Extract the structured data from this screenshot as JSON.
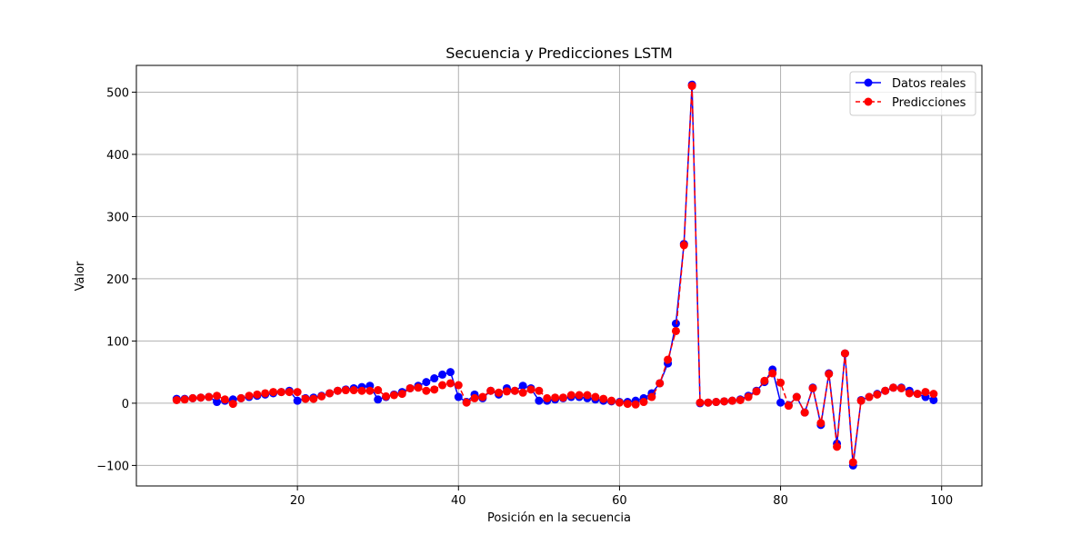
{
  "chart_data": {
    "type": "line",
    "title": "Secuencia y Predicciones LSTM",
    "xlabel": "Posición en la secuencia",
    "ylabel": "Valor",
    "xlim": [
      0,
      105
    ],
    "ylim": [
      -133,
      543
    ],
    "xticks": [
      20,
      40,
      60,
      80,
      100
    ],
    "yticks": [
      -100,
      0,
      100,
      200,
      300,
      400,
      500
    ],
    "grid": true,
    "legend": "top-right",
    "series": [
      {
        "name": "Datos reales",
        "color": "#0000ff",
        "style": "solid",
        "x": [
          5,
          6,
          7,
          8,
          9,
          10,
          11,
          12,
          13,
          14,
          15,
          16,
          17,
          18,
          19,
          20,
          21,
          22,
          23,
          24,
          25,
          26,
          27,
          28,
          29,
          30,
          31,
          32,
          33,
          34,
          35,
          36,
          37,
          38,
          39,
          40,
          41,
          42,
          43,
          44,
          45,
          46,
          47,
          48,
          49,
          50,
          51,
          52,
          53,
          54,
          55,
          56,
          57,
          58,
          59,
          60,
          61,
          62,
          63,
          64,
          65,
          66,
          67,
          68,
          69,
          70,
          71,
          72,
          73,
          74,
          75,
          76,
          77,
          78,
          79,
          80,
          81,
          82,
          83,
          84,
          85,
          86,
          87,
          88,
          89,
          90,
          91,
          92,
          93,
          94,
          95,
          96,
          97,
          98,
          99
        ],
        "values": [
          7,
          7,
          8,
          9,
          10,
          2,
          4,
          6,
          8,
          10,
          12,
          14,
          16,
          18,
          20,
          4,
          8,
          9,
          12,
          16,
          20,
          22,
          24,
          26,
          28,
          6,
          10,
          14,
          18,
          24,
          28,
          34,
          40,
          46,
          50,
          10,
          2,
          14,
          8,
          20,
          14,
          24,
          20,
          28,
          24,
          4,
          4,
          6,
          8,
          10,
          10,
          8,
          6,
          4,
          3,
          2,
          2,
          4,
          8,
          16,
          32,
          64,
          128,
          256,
          512,
          0,
          1,
          2,
          3,
          4,
          6,
          12,
          20,
          34,
          54,
          1,
          -3,
          10,
          -15,
          25,
          -35,
          48,
          -65,
          80,
          -100,
          5,
          10,
          15,
          20,
          25,
          25,
          20,
          15,
          10,
          5
        ]
      },
      {
        "name": "Predicciones",
        "color": "#ff0000",
        "style": "dashed",
        "x": [
          5,
          6,
          7,
          8,
          9,
          10,
          11,
          12,
          13,
          14,
          15,
          16,
          17,
          18,
          19,
          20,
          21,
          22,
          23,
          24,
          25,
          26,
          27,
          28,
          29,
          30,
          31,
          32,
          33,
          34,
          35,
          36,
          37,
          38,
          39,
          40,
          41,
          42,
          43,
          44,
          45,
          46,
          47,
          48,
          49,
          50,
          51,
          52,
          53,
          54,
          55,
          56,
          57,
          58,
          59,
          60,
          61,
          62,
          63,
          64,
          65,
          66,
          67,
          68,
          69,
          70,
          71,
          72,
          73,
          74,
          75,
          76,
          77,
          78,
          79,
          80,
          81,
          82,
          83,
          84,
          85,
          86,
          87,
          88,
          89,
          90,
          91,
          92,
          93,
          94,
          95,
          96,
          97,
          98,
          99
        ],
        "values": [
          5,
          6,
          8,
          9,
          10,
          12,
          6,
          -1,
          8,
          12,
          14,
          16,
          18,
          18,
          18,
          18,
          7,
          7,
          11,
          16,
          20,
          21,
          21,
          20,
          20,
          21,
          11,
          13,
          15,
          24,
          25,
          20,
          22,
          29,
          32,
          29,
          1,
          8,
          10,
          20,
          17,
          19,
          20,
          17,
          22,
          20,
          8,
          9,
          9,
          13,
          13,
          13,
          10,
          7,
          4,
          1,
          -1,
          -2,
          2,
          10,
          32,
          70,
          116,
          254,
          510,
          1,
          1,
          2,
          3,
          4,
          5,
          10,
          19,
          36,
          48,
          33,
          -4,
          10,
          -15,
          24,
          -32,
          47,
          -70,
          80,
          -95,
          4,
          10,
          14,
          20,
          25,
          24,
          16,
          15,
          18,
          15
        ]
      }
    ]
  }
}
